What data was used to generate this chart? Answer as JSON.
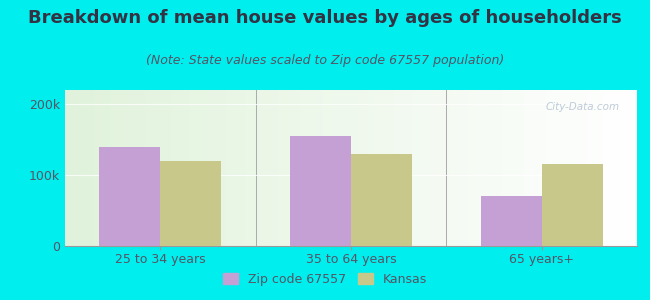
{
  "title": "Breakdown of mean house values by ages of householders",
  "subtitle": "(Note: State values scaled to Zip code 67557 population)",
  "categories": [
    "25 to 34 years",
    "35 to 64 years",
    "65 years+"
  ],
  "zip_values": [
    140000,
    155000,
    70000
  ],
  "state_values": [
    120000,
    130000,
    115000
  ],
  "zip_color": "#c4a0d4",
  "state_color": "#c8c88a",
  "background_outer": "#00eeee",
  "ylim": [
    0,
    220000
  ],
  "yticks": [
    0,
    100000,
    200000
  ],
  "ytick_labels": [
    "0",
    "100k",
    "200k"
  ],
  "bar_width": 0.32,
  "legend_zip_label": "Zip code 67557",
  "legend_state_label": "Kansas",
  "title_fontsize": 13,
  "subtitle_fontsize": 9,
  "tick_fontsize": 9,
  "legend_fontsize": 9,
  "text_color": "#333344",
  "tick_color": "#555566"
}
